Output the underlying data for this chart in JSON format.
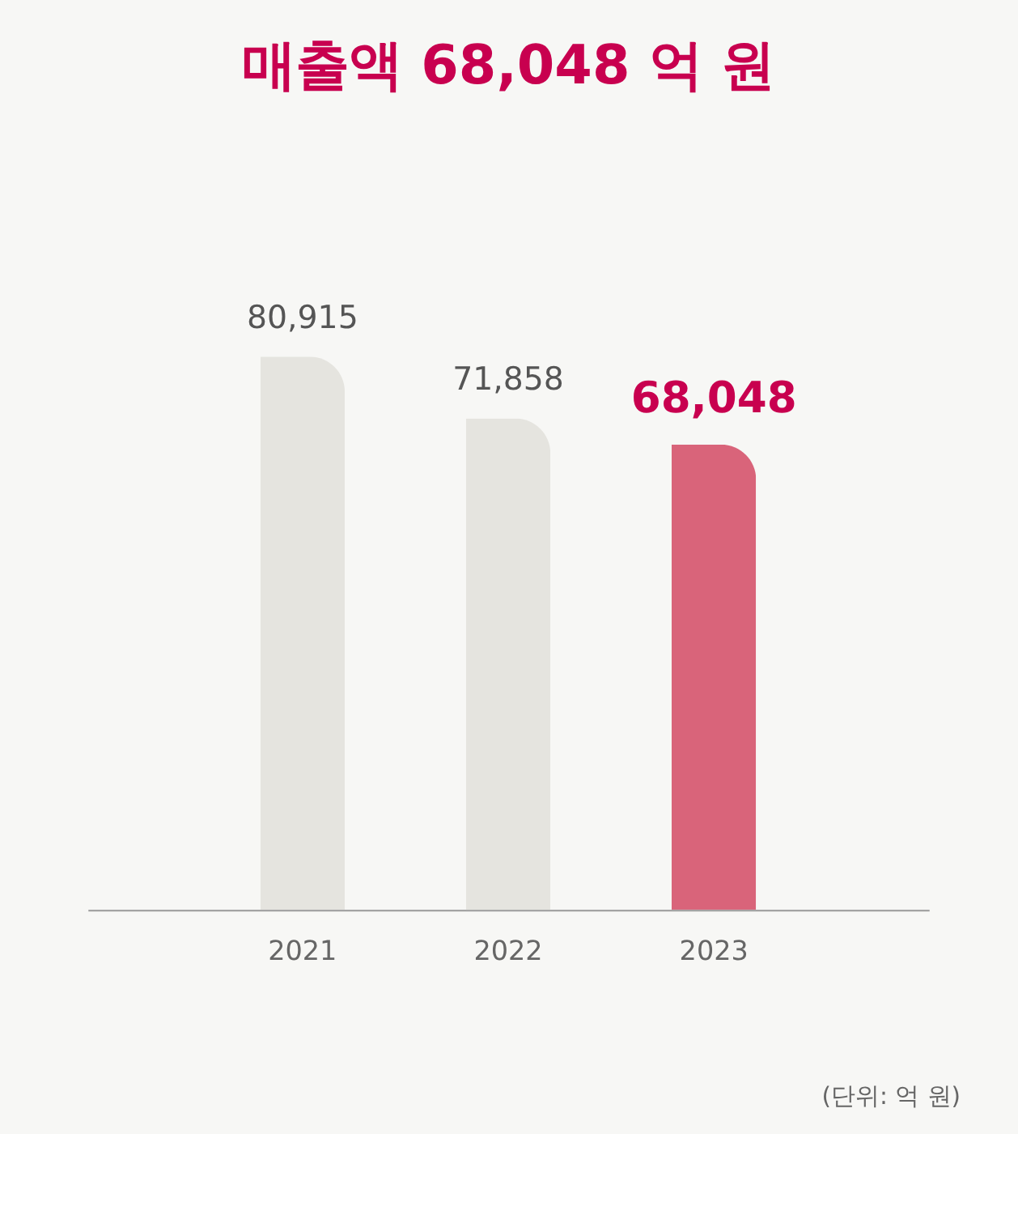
{
  "chart_data": {
    "type": "bar",
    "title": "매출액 68,048 억 원",
    "categories": [
      "2021",
      "2022",
      "2023"
    ],
    "values": [
      80915,
      71858,
      68048
    ],
    "colors": [
      "#e5e4df",
      "#e5e4df",
      "#d9647a"
    ],
    "value_labels": [
      "80,915",
      "71,858",
      "68,048"
    ],
    "grid": false,
    "annotations": [
      "(단위: 억 원)"
    ]
  }
}
